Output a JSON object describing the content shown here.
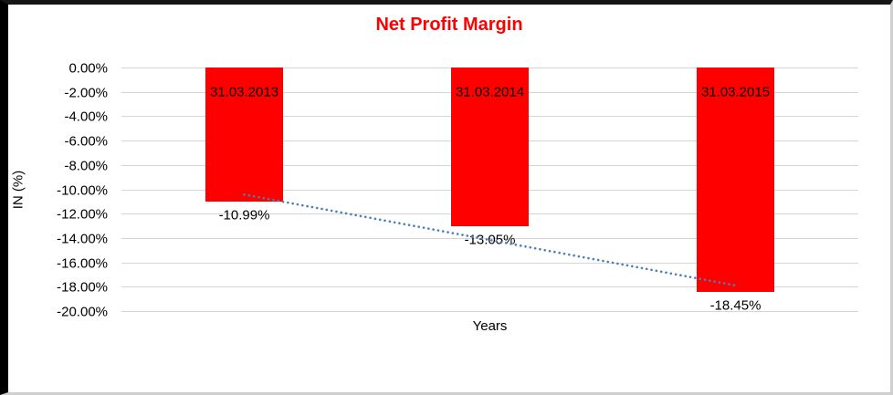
{
  "chart_data": {
    "type": "bar",
    "title": "Net Profit Margin",
    "title_color": "#FF0000",
    "categories": [
      "31.03.2013",
      "31.03.2014",
      "31.03.2015"
    ],
    "series": [
      {
        "name": "Net Profit Margin",
        "values": [
          -10.99,
          -13.05,
          -18.45
        ]
      }
    ],
    "data_labels": [
      "-10.99%",
      "-13.05%",
      "-18.45%"
    ],
    "xlabel": "Years",
    "ylabel": "IN (%)",
    "ylim": [
      -20,
      0
    ],
    "y_tick_step": 2,
    "y_tick_labels": [
      "0.00%",
      "-2.00%",
      "-4.00%",
      "-6.00%",
      "-8.00%",
      "-10.00%",
      "-12.00%",
      "-14.00%",
      "-16.00%",
      "-18.00%",
      "-20.00%"
    ],
    "grid": true,
    "legend": "none",
    "bar_color": "#FF0000",
    "gridline_color": "#D6D6D6",
    "trendline": {
      "type": "linear",
      "style": "dotted",
      "color": "#4A7EBB"
    }
  }
}
